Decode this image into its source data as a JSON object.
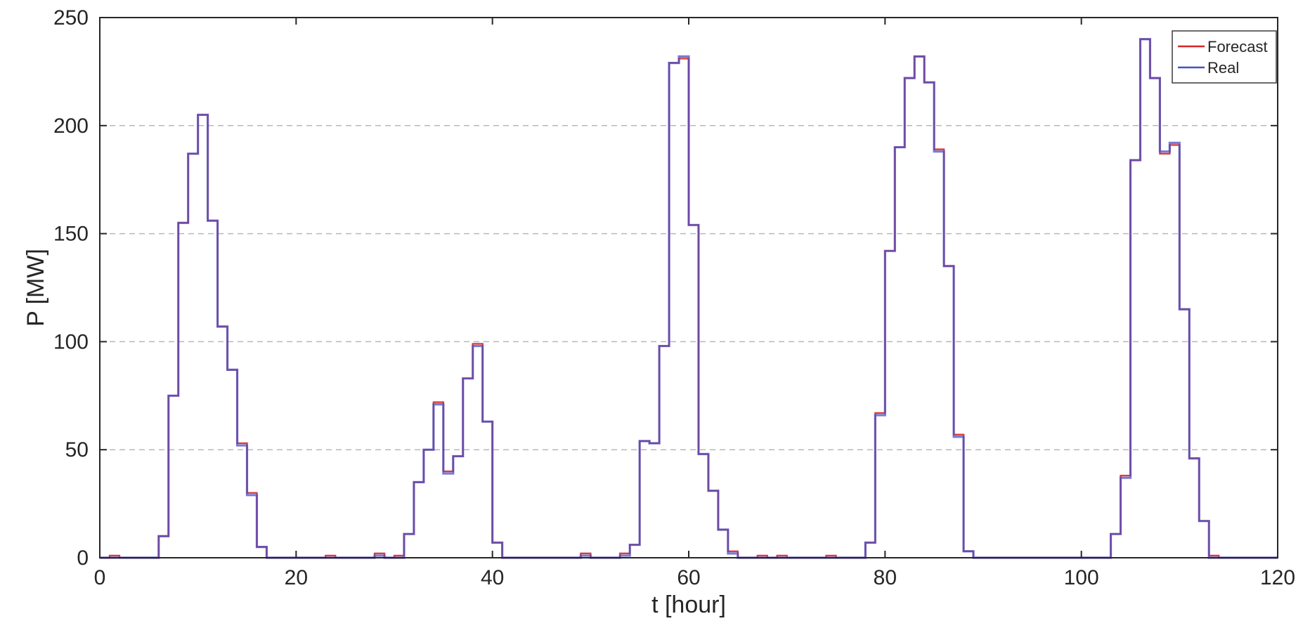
{
  "chart_data": {
    "type": "line",
    "step": true,
    "title": "",
    "xlabel": "t [hour]",
    "ylabel": "P [MW]",
    "xlim": [
      0,
      120
    ],
    "ylim": [
      0,
      250
    ],
    "xticks": [
      0,
      20,
      40,
      60,
      80,
      100,
      120
    ],
    "yticks": [
      0,
      50,
      100,
      150,
      200,
      250
    ],
    "grid": "horizontal dashed",
    "legend_position": "top-right",
    "x": [
      0,
      1,
      2,
      3,
      4,
      5,
      6,
      7,
      8,
      9,
      10,
      11,
      12,
      13,
      14,
      15,
      16,
      17,
      18,
      19,
      20,
      21,
      22,
      23,
      24,
      25,
      26,
      27,
      28,
      29,
      30,
      31,
      32,
      33,
      34,
      35,
      36,
      37,
      38,
      39,
      40,
      41,
      42,
      43,
      44,
      45,
      46,
      47,
      48,
      49,
      50,
      51,
      52,
      53,
      54,
      55,
      56,
      57,
      58,
      59,
      60,
      61,
      62,
      63,
      64,
      65,
      66,
      67,
      68,
      69,
      70,
      71,
      72,
      73,
      74,
      75,
      76,
      77,
      78,
      79,
      80,
      81,
      82,
      83,
      84,
      85,
      86,
      87,
      88,
      89,
      90,
      91,
      92,
      93,
      94,
      95,
      96,
      97,
      98,
      99,
      100,
      101,
      102,
      103,
      104,
      105,
      106,
      107,
      108,
      109,
      110,
      111,
      112,
      113,
      114,
      115,
      116,
      117,
      118,
      119,
      120
    ],
    "series": [
      {
        "name": "Forecast",
        "color": "#d62728",
        "values": [
          0,
          1,
          0,
          0,
          0,
          0,
          10,
          75,
          155,
          187,
          205,
          156,
          107,
          87,
          53,
          30,
          5,
          0,
          0,
          0,
          0,
          0,
          0,
          1,
          0,
          0,
          0,
          0,
          2,
          0,
          1,
          11,
          35,
          50,
          72,
          40,
          47,
          83,
          99,
          63,
          7,
          0,
          0,
          0,
          0,
          0,
          0,
          0,
          0,
          2,
          0,
          0,
          0,
          2,
          6,
          54,
          53,
          98,
          229,
          231,
          154,
          48,
          31,
          13,
          3,
          0,
          0,
          1,
          0,
          1,
          0,
          0,
          0,
          0,
          1,
          0,
          0,
          0,
          7,
          67,
          142,
          190,
          222,
          232,
          220,
          189,
          135,
          57,
          3,
          0,
          0,
          0,
          0,
          0,
          0,
          0,
          0,
          0,
          0,
          0,
          0,
          0,
          0,
          11,
          38,
          184,
          240,
          222,
          187,
          191,
          115,
          46,
          17,
          1,
          0,
          0,
          0,
          0,
          0,
          0,
          0
        ]
      },
      {
        "name": "Real",
        "color": "#4b4fc4",
        "values": [
          0,
          0,
          0,
          0,
          0,
          0,
          10,
          75,
          155,
          187,
          205,
          156,
          107,
          87,
          52,
          29,
          5,
          0,
          0,
          0,
          0,
          0,
          0,
          0,
          0,
          0,
          0,
          0,
          1,
          0,
          0,
          11,
          35,
          50,
          71,
          39,
          47,
          83,
          98,
          63,
          7,
          0,
          0,
          0,
          0,
          0,
          0,
          0,
          0,
          1,
          0,
          0,
          0,
          1,
          6,
          54,
          53,
          98,
          229,
          232,
          154,
          48,
          31,
          13,
          2,
          0,
          0,
          0,
          0,
          0,
          0,
          0,
          0,
          0,
          0,
          0,
          0,
          0,
          7,
          66,
          142,
          190,
          222,
          232,
          220,
          188,
          135,
          56,
          3,
          0,
          0,
          0,
          0,
          0,
          0,
          0,
          0,
          0,
          0,
          0,
          0,
          0,
          0,
          11,
          37,
          184,
          240,
          222,
          188,
          192,
          115,
          46,
          17,
          0,
          0,
          0,
          0,
          0,
          0,
          0,
          0
        ]
      }
    ]
  }
}
